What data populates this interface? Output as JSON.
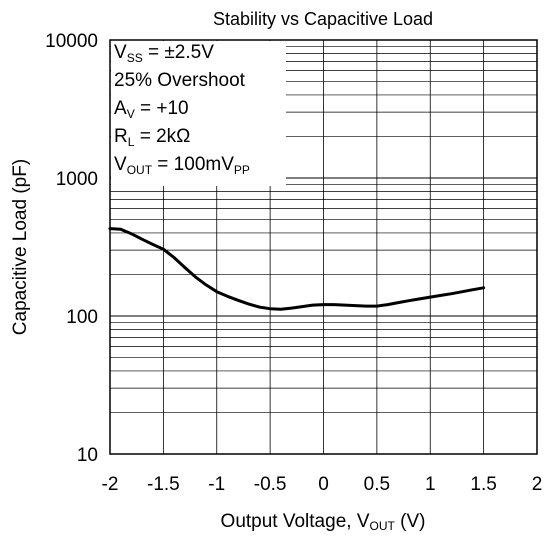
{
  "chart_data": {
    "type": "line",
    "title": "Stability vs Capacitive Load",
    "xlabel": {
      "pre": "Output Voltage, V",
      "sub": "OUT",
      "post": " (V)"
    },
    "ylabel": "Capacitive Load (pF)",
    "xlim": [
      -2,
      2
    ],
    "ylim": [
      10,
      10000
    ],
    "yscale": "log",
    "grid": true,
    "x_ticks": [
      -2,
      -1.5,
      -1,
      -0.5,
      0,
      0.5,
      1,
      1.5,
      2
    ],
    "x_tick_labels": [
      "-2",
      "-1.5",
      "-1",
      "-0.5",
      "0",
      "0.5",
      "1",
      "1.5",
      "2"
    ],
    "y_tick_labels": [
      "10",
      "100",
      "1000",
      "10000"
    ],
    "conditions": [
      {
        "pre": "V",
        "sub": "SS",
        "post": " = ±2.5V"
      },
      {
        "pre": "25% Overshoot",
        "sub": "",
        "post": ""
      },
      {
        "pre": "A",
        "sub": "V",
        "post": " = +10"
      },
      {
        "pre": "R",
        "sub": "L",
        "post": " = 2kΩ"
      },
      {
        "pre": "V",
        "sub": "OUT",
        "post": " = 100mV",
        "sub2": "PP"
      }
    ],
    "series": [
      {
        "x": [
          -2.0,
          -1.9,
          -1.8,
          -1.7,
          -1.6,
          -1.5,
          -1.4,
          -1.3,
          -1.2,
          -1.1,
          -1.0,
          -0.9,
          -0.8,
          -0.7,
          -0.6,
          -0.5,
          -0.4,
          -0.3,
          -0.2,
          -0.1,
          0.0,
          0.1,
          0.2,
          0.3,
          0.4,
          0.5,
          0.6,
          0.7,
          0.8,
          0.9,
          1.0,
          1.1,
          1.2,
          1.3,
          1.4,
          1.5
        ],
        "y": [
          430,
          425,
          395,
          360,
          330,
          305,
          265,
          225,
          192,
          168,
          150,
          139,
          130,
          122,
          116,
          113,
          112,
          114,
          117,
          120,
          121,
          121,
          120,
          119,
          118,
          118,
          121,
          125,
          129,
          133,
          137,
          141,
          145,
          150,
          155,
          160
        ]
      }
    ]
  }
}
